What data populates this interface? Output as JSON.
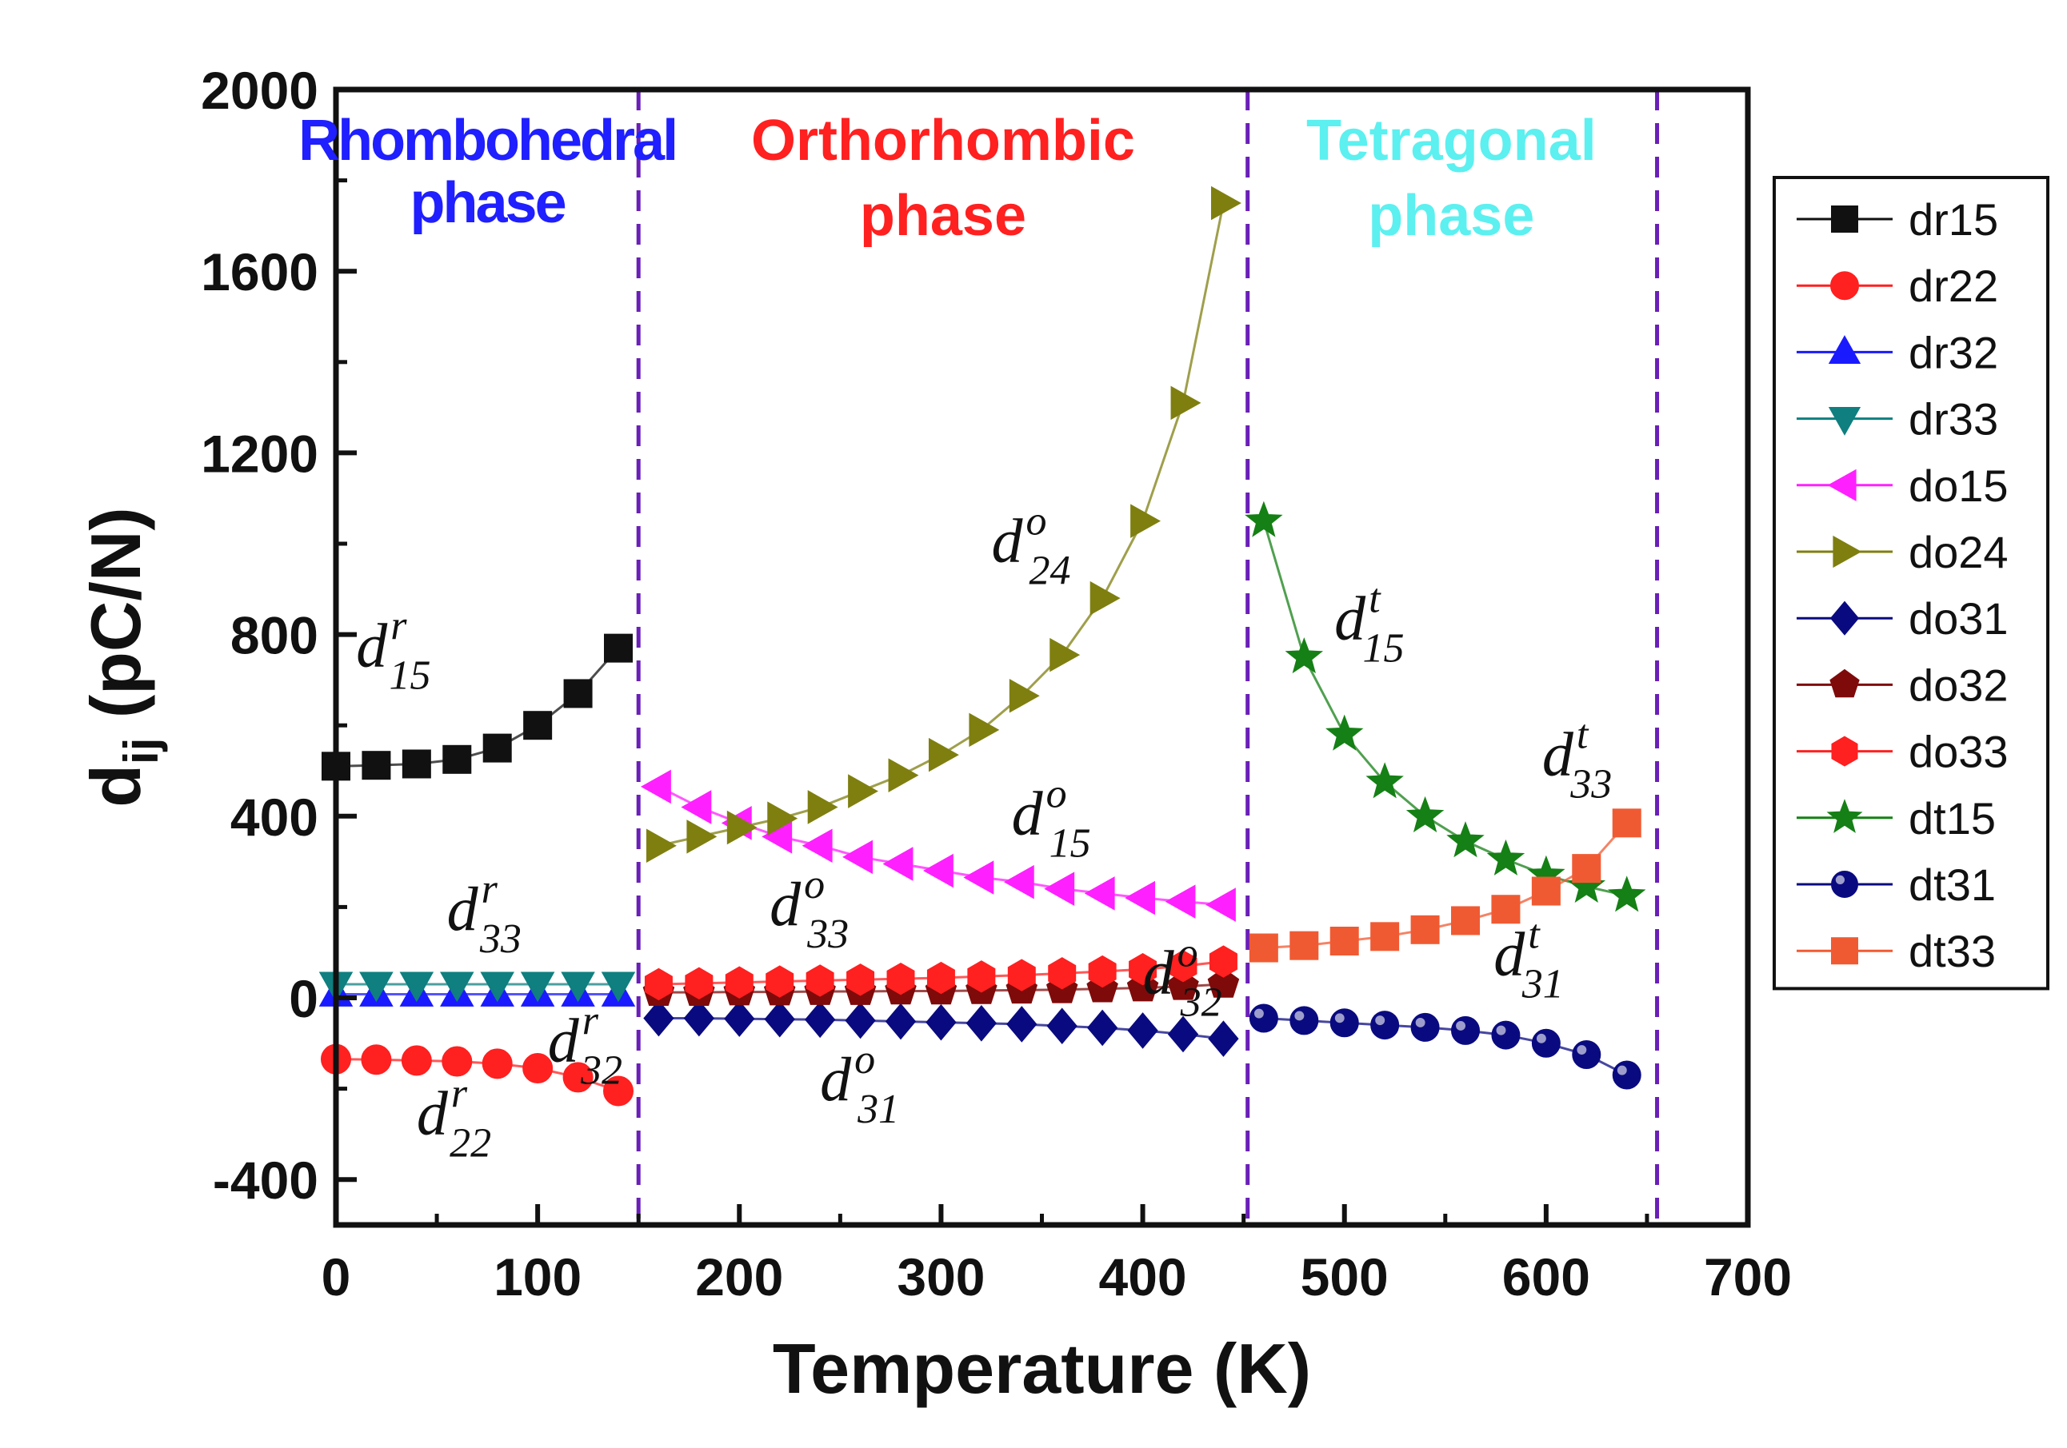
{
  "chart_data": {
    "type": "line",
    "title": "",
    "xlabel": "Temperature (K)",
    "ylabel": "d",
    "ylabel_subscript": "ij",
    "ylabel_unit": " (pC/N)",
    "xlim": [
      0,
      700
    ],
    "ylim": [
      -500,
      2000
    ],
    "xticks": [
      0,
      100,
      200,
      300,
      400,
      500,
      600,
      700
    ],
    "yticks": [
      -400,
      0,
      400,
      800,
      1200,
      1600,
      2000
    ],
    "phase_boundaries": [
      150,
      452,
      655
    ],
    "phases": [
      {
        "line1": "Rhombohedral",
        "line2": "phase",
        "color": "#1f1fff"
      },
      {
        "line1": "Orthorhombic",
        "line2": "phase",
        "color": "#ff2020"
      },
      {
        "line1": "Tetragonal",
        "line2": "phase",
        "color": "#5cf0f0"
      }
    ],
    "series": [
      {
        "name": "dr15",
        "color": "#111111",
        "marker": "square",
        "x": [
          0,
          20,
          40,
          60,
          80,
          100,
          120,
          140
        ],
        "y": [
          510,
          512,
          515,
          525,
          550,
          600,
          670,
          770
        ]
      },
      {
        "name": "dr22",
        "color": "#ff2020",
        "marker": "circle",
        "x": [
          0,
          20,
          40,
          60,
          80,
          100,
          120,
          140
        ],
        "y": [
          -135,
          -136,
          -138,
          -140,
          -145,
          -155,
          -175,
          -205
        ]
      },
      {
        "name": "dr32",
        "color": "#1a1aff",
        "marker": "triangle-up",
        "x": [
          0,
          20,
          40,
          60,
          80,
          100,
          120,
          140
        ],
        "y": [
          8,
          8,
          8,
          8,
          8,
          8,
          8,
          8
        ]
      },
      {
        "name": "dr33",
        "color": "#0f7f7f",
        "marker": "triangle-down",
        "x": [
          0,
          20,
          40,
          60,
          80,
          100,
          120,
          140
        ],
        "y": [
          30,
          30,
          30,
          30,
          30,
          30,
          30,
          30
        ]
      },
      {
        "name": "do15",
        "color": "#ff20ff",
        "marker": "triangle-left",
        "x": [
          160,
          180,
          200,
          220,
          240,
          260,
          280,
          300,
          320,
          340,
          360,
          380,
          400,
          420,
          440
        ],
        "y": [
          465,
          420,
          385,
          355,
          335,
          310,
          295,
          280,
          265,
          255,
          240,
          230,
          220,
          212,
          205
        ]
      },
      {
        "name": "do24",
        "color": "#7f7f10",
        "marker": "triangle-right",
        "x": [
          160,
          180,
          200,
          220,
          240,
          260,
          280,
          300,
          320,
          340,
          360,
          380,
          400,
          420,
          440
        ],
        "y": [
          335,
          355,
          375,
          395,
          420,
          455,
          490,
          535,
          590,
          665,
          755,
          880,
          1050,
          1310,
          1750
        ]
      },
      {
        "name": "do31",
        "color": "#0a0a80",
        "marker": "diamond",
        "x": [
          160,
          180,
          200,
          220,
          240,
          260,
          280,
          300,
          320,
          340,
          360,
          380,
          400,
          420,
          440
        ],
        "y": [
          -45,
          -45,
          -46,
          -47,
          -48,
          -50,
          -52,
          -54,
          -56,
          -58,
          -62,
          -66,
          -72,
          -80,
          -90
        ]
      },
      {
        "name": "do32",
        "color": "#7f0a0a",
        "marker": "pentagon",
        "x": [
          160,
          180,
          200,
          220,
          240,
          260,
          280,
          300,
          320,
          340,
          360,
          380,
          400,
          420,
          440
        ],
        "y": [
          12,
          12,
          13,
          13,
          14,
          14,
          15,
          15,
          16,
          17,
          18,
          20,
          22,
          25,
          30
        ]
      },
      {
        "name": "do33",
        "color": "#ff2020",
        "marker": "hexagon",
        "x": [
          160,
          180,
          200,
          220,
          240,
          260,
          280,
          300,
          320,
          340,
          360,
          380,
          400,
          420,
          440
        ],
        "y": [
          30,
          32,
          34,
          36,
          38,
          40,
          42,
          44,
          47,
          50,
          54,
          58,
          63,
          70,
          80
        ]
      },
      {
        "name": "dt15",
        "color": "#158015",
        "marker": "star",
        "x": [
          460,
          480,
          500,
          520,
          540,
          560,
          580,
          600,
          620,
          640
        ],
        "y": [
          1050,
          750,
          580,
          475,
          400,
          345,
          305,
          270,
          245,
          225
        ]
      },
      {
        "name": "dt31",
        "color": "#0a0a80",
        "marker": "ball",
        "x": [
          460,
          480,
          500,
          520,
          540,
          560,
          580,
          600,
          620,
          640
        ],
        "y": [
          -45,
          -50,
          -55,
          -60,
          -65,
          -72,
          -82,
          -100,
          -125,
          -170
        ]
      },
      {
        "name": "dt33",
        "color": "#f05a32",
        "marker": "square",
        "x": [
          460,
          480,
          500,
          520,
          540,
          560,
          580,
          600,
          620,
          640
        ],
        "y": [
          110,
          115,
          125,
          135,
          150,
          170,
          195,
          235,
          285,
          385
        ]
      }
    ],
    "annotations": [
      {
        "base": "d",
        "sup": "r",
        "sub": "15",
        "x": 10,
        "y": 730
      },
      {
        "base": "d",
        "sup": "r",
        "sub": "33",
        "x": 55,
        "y": 150
      },
      {
        "base": "d",
        "sup": "r",
        "sub": "32",
        "x": 105,
        "y": -140
      },
      {
        "base": "d",
        "sup": "r",
        "sub": "22",
        "x": 40,
        "y": -300
      },
      {
        "base": "d",
        "sup": "o",
        "sub": "24",
        "x": 325,
        "y": 960
      },
      {
        "base": "d",
        "sup": "o",
        "sub": "15",
        "x": 335,
        "y": 360
      },
      {
        "base": "d",
        "sup": "o",
        "sub": "33",
        "x": 215,
        "y": 160
      },
      {
        "base": "d",
        "sup": "o",
        "sub": "32",
        "x": 400,
        "y": 10
      },
      {
        "base": "d",
        "sup": "o",
        "sub": "31",
        "x": 240,
        "y": -225
      },
      {
        "base": "d",
        "sup": "t",
        "sub": "15",
        "x": 495,
        "y": 790
      },
      {
        "base": "d",
        "sup": "t",
        "sub": "33",
        "x": 598,
        "y": 490
      },
      {
        "base": "d",
        "sup": "t",
        "sub": "31",
        "x": 574,
        "y": 50
      }
    ]
  }
}
